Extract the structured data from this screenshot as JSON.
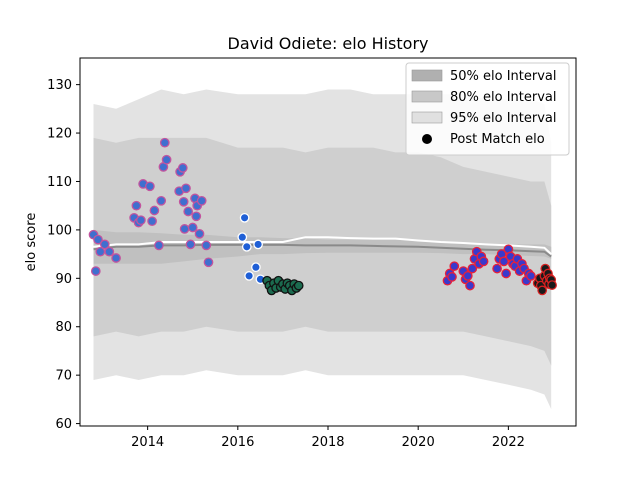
{
  "chart_data": {
    "type": "scatter",
    "title": "David Odiete: elo History",
    "xlabel": "",
    "ylabel": "elo score",
    "xlim": [
      2012.5,
      2023.5
    ],
    "ylim": [
      59.5,
      135.5
    ],
    "xticks": [
      2014,
      2016,
      2018,
      2020,
      2022
    ],
    "xtick_labels": [
      "2014",
      "2016",
      "2018",
      "2020",
      "2022"
    ],
    "yticks": [
      60,
      70,
      80,
      90,
      100,
      110,
      120,
      130
    ],
    "ytick_labels": [
      "60",
      "70",
      "80",
      "90",
      "100",
      "110",
      "120",
      "130"
    ],
    "grid": false,
    "legend_position": "top-right",
    "legend": [
      {
        "label": "50% elo Interval",
        "kind": "patch",
        "color": "#a6a6a6"
      },
      {
        "label": "80% elo Interval",
        "kind": "patch",
        "color": "#bfbfbf"
      },
      {
        "label": "95% elo Interval",
        "kind": "patch",
        "color": "#e0e0e0"
      },
      {
        "label": "Post Match elo",
        "kind": "marker",
        "color": "#000000"
      }
    ],
    "bands": {
      "x": [
        2012.8,
        2013.3,
        2013.8,
        2014.3,
        2014.8,
        2015.3,
        2016.0,
        2016.5,
        2017.0,
        2017.5,
        2018.0,
        2018.5,
        2019.0,
        2019.5,
        2020.0,
        2020.5,
        2021.0,
        2021.5,
        2022.0,
        2022.5,
        2022.8,
        2022.95
      ],
      "p95": {
        "upper": [
          126,
          125,
          127,
          129,
          128,
          129,
          128,
          128,
          128,
          128,
          129,
          129,
          128,
          128,
          128,
          128,
          128,
          127,
          127,
          127,
          126,
          118
        ],
        "lower": [
          69,
          70,
          69,
          70,
          70,
          71,
          70,
          70,
          70,
          71,
          70,
          70,
          70,
          70,
          70,
          70,
          70,
          69,
          68,
          67,
          66,
          63
        ]
      },
      "p80": {
        "upper": [
          119,
          118,
          119,
          119,
          119,
          119,
          117,
          117,
          117,
          116,
          117,
          117,
          117,
          116,
          116,
          115,
          113,
          112,
          111,
          110,
          110,
          105
        ]
      },
      "p50": {
        "upper": [
          100,
          99.5,
          99.5,
          99.3,
          99,
          99,
          98.5,
          98.5,
          98.3,
          98.2,
          98,
          98,
          98,
          98,
          97.8,
          97.5,
          97.3,
          97.2,
          97,
          97,
          97,
          96.5
        ],
        "lower": [
          93,
          93,
          93,
          93,
          93.5,
          94,
          94.5,
          95,
          95,
          95.2,
          95.3,
          95.3,
          95.3,
          95.3,
          95.3,
          95.2,
          95,
          95,
          94.8,
          94.6,
          94.5,
          94
        ]
      }
    },
    "lines": {
      "white": [
        96.5,
        97,
        97,
        97.5,
        97.5,
        97.5,
        97.5,
        97.5,
        97.5,
        98.5,
        98.5,
        98.3,
        98.2,
        98.2,
        97.8,
        97.5,
        97.3,
        97,
        96.8,
        96.5,
        96.3,
        95
      ],
      "gray": [
        96,
        96.5,
        96.5,
        96.8,
        96.8,
        96.9,
        96.9,
        96.9,
        96.9,
        96.8,
        96.8,
        96.8,
        96.7,
        96.6,
        96.5,
        96.3,
        96.1,
        95.9,
        95.8,
        95.6,
        95.5,
        94.5
      ]
    },
    "series": [
      {
        "fill": "#3f6fcf",
        "edge": "#c2549e",
        "points": [
          [
            2012.8,
            99
          ],
          [
            2012.85,
            91.5
          ],
          [
            2012.9,
            98
          ],
          [
            2012.95,
            95.5
          ],
          [
            2013.05,
            97
          ],
          [
            2013.15,
            95.5
          ],
          [
            2013.3,
            94.2
          ],
          [
            2013.7,
            102.5
          ],
          [
            2013.75,
            105
          ],
          [
            2013.8,
            101.5
          ],
          [
            2013.85,
            102
          ],
          [
            2013.9,
            109.5
          ],
          [
            2014.05,
            109
          ],
          [
            2014.1,
            101.8
          ],
          [
            2014.15,
            104
          ],
          [
            2014.25,
            96.8
          ],
          [
            2014.3,
            106
          ],
          [
            2014.35,
            113
          ],
          [
            2014.38,
            118
          ],
          [
            2014.42,
            114.5
          ],
          [
            2014.7,
            108
          ],
          [
            2014.72,
            112
          ],
          [
            2014.78,
            112.8
          ],
          [
            2014.8,
            105.8
          ],
          [
            2014.82,
            100.2
          ],
          [
            2014.85,
            108.6
          ],
          [
            2014.9,
            103.8
          ],
          [
            2014.95,
            97
          ],
          [
            2015.0,
            100.5
          ],
          [
            2015.05,
            106.5
          ],
          [
            2015.08,
            102.8
          ],
          [
            2015.1,
            105
          ],
          [
            2015.15,
            99.2
          ],
          [
            2015.2,
            106
          ],
          [
            2015.3,
            96.8
          ],
          [
            2015.35,
            93.3
          ]
        ]
      },
      {
        "fill": "#1f5fd6",
        "edge": "#ffffff",
        "points": [
          [
            2016.1,
            98.5
          ],
          [
            2016.15,
            102.5
          ],
          [
            2016.2,
            96.5
          ],
          [
            2016.25,
            90.5
          ],
          [
            2016.4,
            92.3
          ],
          [
            2016.45,
            97
          ],
          [
            2016.5,
            89.8
          ]
        ]
      },
      {
        "fill": "#1b6b4f",
        "edge": "#111111",
        "points": [
          [
            2016.65,
            89.5
          ],
          [
            2016.7,
            88.5
          ],
          [
            2016.75,
            87.5
          ],
          [
            2016.8,
            89
          ],
          [
            2016.85,
            88
          ],
          [
            2016.9,
            89.5
          ],
          [
            2016.95,
            88.2
          ],
          [
            2017.0,
            88.8
          ],
          [
            2017.05,
            87.8
          ],
          [
            2017.1,
            89
          ],
          [
            2017.15,
            88.5
          ],
          [
            2017.2,
            87.5
          ],
          [
            2017.25,
            88.8
          ],
          [
            2017.3,
            88
          ],
          [
            2017.35,
            88.5
          ]
        ]
      },
      {
        "fill": "#3a3acc",
        "edge": "#e8203a",
        "points": [
          [
            2020.65,
            89.5
          ],
          [
            2020.7,
            91
          ],
          [
            2020.75,
            90.3
          ],
          [
            2020.8,
            92.5
          ],
          [
            2021.0,
            91.5
          ],
          [
            2021.05,
            89.8
          ],
          [
            2021.1,
            90.5
          ],
          [
            2021.15,
            88.5
          ],
          [
            2021.2,
            92
          ],
          [
            2021.25,
            94
          ],
          [
            2021.3,
            95.5
          ],
          [
            2021.35,
            93
          ],
          [
            2021.4,
            94.5
          ],
          [
            2021.45,
            93.5
          ],
          [
            2021.75,
            92
          ],
          [
            2021.8,
            94
          ],
          [
            2021.85,
            95
          ],
          [
            2021.9,
            93.5
          ],
          [
            2021.95,
            91
          ],
          [
            2022.0,
            96
          ],
          [
            2022.05,
            94.5
          ],
          [
            2022.1,
            93
          ],
          [
            2022.15,
            92.5
          ],
          [
            2022.2,
            94
          ],
          [
            2022.25,
            91.5
          ],
          [
            2022.3,
            93
          ],
          [
            2022.35,
            92
          ],
          [
            2022.4,
            89.5
          ],
          [
            2022.45,
            91
          ],
          [
            2022.5,
            90.5
          ]
        ]
      },
      {
        "fill": "#1a1a1a",
        "edge": "#d62020",
        "points": [
          [
            2022.65,
            89
          ],
          [
            2022.7,
            90
          ],
          [
            2022.72,
            88.5
          ],
          [
            2022.75,
            87.5
          ],
          [
            2022.8,
            90.5
          ],
          [
            2022.82,
            92
          ],
          [
            2022.85,
            89.5
          ],
          [
            2022.88,
            91
          ],
          [
            2022.9,
            88.8
          ],
          [
            2022.92,
            90
          ],
          [
            2022.95,
            89.7
          ],
          [
            2022.97,
            88.6
          ]
        ]
      }
    ]
  }
}
